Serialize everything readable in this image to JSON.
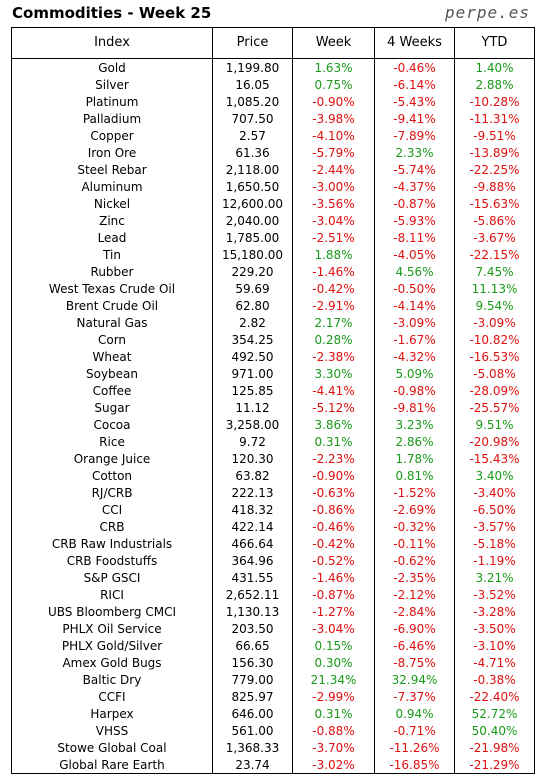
{
  "title": "Commodities - Week 25",
  "watermark": "perpe.es",
  "headers": [
    "Index",
    "Price",
    "Week",
    "4 Weeks",
    "YTD"
  ],
  "colors": {
    "negative": "#e01010",
    "positive": "#1a9a1a"
  },
  "rows": [
    [
      "Gold",
      "1,199.80",
      "1.63%",
      "-0.46%",
      "1.40%"
    ],
    [
      "Silver",
      "16.05",
      "0.75%",
      "-6.14%",
      "2.88%"
    ],
    [
      "Platinum",
      "1,085.20",
      "-0.90%",
      "-5.43%",
      "-10.28%"
    ],
    [
      "Palladium",
      "707.50",
      "-3.98%",
      "-9.41%",
      "-11.31%"
    ],
    [
      "Copper",
      "2.57",
      "-4.10%",
      "-7.89%",
      "-9.51%"
    ],
    [
      "Iron Ore",
      "61.36",
      "-5.79%",
      "2.33%",
      "-13.89%"
    ],
    [
      "Steel Rebar",
      "2,118.00",
      "-2.44%",
      "-5.74%",
      "-22.25%"
    ],
    [
      "Aluminum",
      "1,650.50",
      "-3.00%",
      "-4.37%",
      "-9.88%"
    ],
    [
      "Nickel",
      "12,600.00",
      "-3.56%",
      "-0.87%",
      "-15.63%"
    ],
    [
      "Zinc",
      "2,040.00",
      "-3.04%",
      "-5.93%",
      "-5.86%"
    ],
    [
      "Lead",
      "1,785.00",
      "-2.51%",
      "-8.11%",
      "-3.67%"
    ],
    [
      "Tin",
      "15,180.00",
      "1.88%",
      "-4.05%",
      "-22.15%"
    ],
    [
      "Rubber",
      "229.20",
      "-1.46%",
      "4.56%",
      "7.45%"
    ],
    [
      "West Texas Crude Oil",
      "59.69",
      "-0.42%",
      "-0.50%",
      "11.13%"
    ],
    [
      "Brent Crude Oil",
      "62.80",
      "-2.91%",
      "-4.14%",
      "9.54%"
    ],
    [
      "Natural Gas",
      "2.82",
      "2.17%",
      "-3.09%",
      "-3.09%"
    ],
    [
      "Corn",
      "354.25",
      "0.28%",
      "-1.67%",
      "-10.82%"
    ],
    [
      "Wheat",
      "492.50",
      "-2.38%",
      "-4.32%",
      "-16.53%"
    ],
    [
      "Soybean",
      "971.00",
      "3.30%",
      "5.09%",
      "-5.08%"
    ],
    [
      "Coffee",
      "125.85",
      "-4.41%",
      "-0.98%",
      "-28.09%"
    ],
    [
      "Sugar",
      "11.12",
      "-5.12%",
      "-9.81%",
      "-25.57%"
    ],
    [
      "Cocoa",
      "3,258.00",
      "3.86%",
      "3.23%",
      "9.51%"
    ],
    [
      "Rice",
      "9.72",
      "0.31%",
      "2.86%",
      "-20.98%"
    ],
    [
      "Orange Juice",
      "120.30",
      "-2.23%",
      "1.78%",
      "-15.43%"
    ],
    [
      "Cotton",
      "63.82",
      "-0.90%",
      "0.81%",
      "3.40%"
    ],
    [
      "RJ/CRB",
      "222.13",
      "-0.63%",
      "-1.52%",
      "-3.40%"
    ],
    [
      "CCI",
      "418.32",
      "-0.86%",
      "-2.69%",
      "-6.50%"
    ],
    [
      "CRB",
      "422.14",
      "-0.46%",
      "-0.32%",
      "-3.57%"
    ],
    [
      "CRB Raw Industrials",
      "466.64",
      "-0.42%",
      "-0.11%",
      "-5.18%"
    ],
    [
      "CRB Foodstuffs",
      "364.96",
      "-0.52%",
      "-0.62%",
      "-1.19%"
    ],
    [
      "S&P GSCI",
      "431.55",
      "-1.46%",
      "-2.35%",
      "3.21%"
    ],
    [
      "RICI",
      "2,652.11",
      "-0.87%",
      "-2.12%",
      "-3.52%"
    ],
    [
      "UBS Bloomberg CMCI",
      "1,130.13",
      "-1.27%",
      "-2.84%",
      "-3.28%"
    ],
    [
      "PHLX Oil Service",
      "203.50",
      "-3.04%",
      "-6.90%",
      "-3.50%"
    ],
    [
      "PHLX Gold/Silver",
      "66.65",
      "0.15%",
      "-6.46%",
      "-3.10%"
    ],
    [
      "Amex Gold Bugs",
      "156.30",
      "0.30%",
      "-8.75%",
      "-4.71%"
    ],
    [
      "Baltic Dry",
      "779.00",
      "21.34%",
      "32.94%",
      "-0.38%"
    ],
    [
      "CCFI",
      "825.97",
      "-2.99%",
      "-7.37%",
      "-22.40%"
    ],
    [
      "Harpex",
      "646.00",
      "0.31%",
      "0.94%",
      "52.72%"
    ],
    [
      "VHSS",
      "561.00",
      "-0.88%",
      "-0.71%",
      "50.40%"
    ],
    [
      "Stowe Global Coal",
      "1,368.33",
      "-3.70%",
      "-11.26%",
      "-21.98%"
    ],
    [
      "Global Rare Earth",
      "23.74",
      "-3.02%",
      "-16.85%",
      "-21.29%"
    ]
  ]
}
